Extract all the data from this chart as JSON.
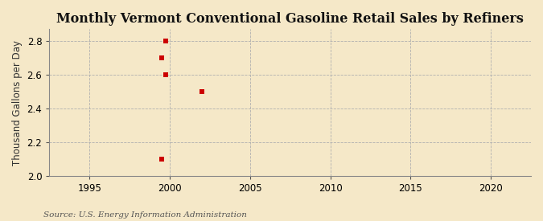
{
  "title": "Monthly Vermont Conventional Gasoline Retail Sales by Refiners",
  "ylabel": "Thousand Gallons per Day",
  "source": "Source: U.S. Energy Information Administration",
  "background_color": "#f5e8c8",
  "data_points": [
    [
      1999.75,
      2.8
    ],
    [
      1999.5,
      2.7
    ],
    [
      1999.75,
      2.6
    ],
    [
      2002.0,
      2.5
    ],
    [
      1999.5,
      2.1
    ]
  ],
  "marker_color": "#cc0000",
  "marker_size": 4,
  "xlim": [
    1992.5,
    2022.5
  ],
  "ylim": [
    2.0,
    2.87
  ],
  "xticks": [
    1995,
    2000,
    2005,
    2010,
    2015,
    2020
  ],
  "yticks": [
    2.0,
    2.2,
    2.4,
    2.6,
    2.8
  ],
  "title_fontsize": 11.5,
  "label_fontsize": 8.5,
  "tick_fontsize": 8.5,
  "source_fontsize": 7.5
}
